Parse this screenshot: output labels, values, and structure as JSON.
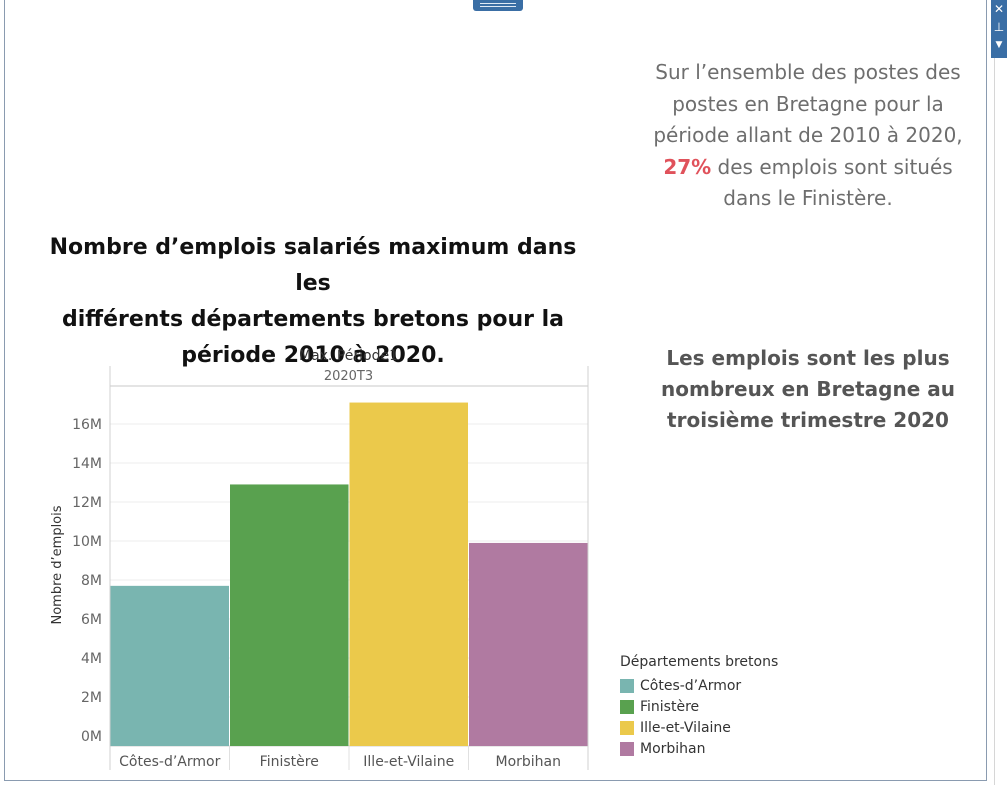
{
  "annotation": {
    "line1": "Sur l’ensemble des postes des",
    "line2": "postes en Bretagne pour la",
    "line3": "période allant de 2010 à 2020,",
    "percent": "27%",
    "line4_rest": " des emplois sont situés",
    "line5": "dans le Finistère."
  },
  "highlight": {
    "line1": "Les emplois sont les plus",
    "line2": "nombreux en Bretagne au",
    "line3": "troisième trimestre 2020"
  },
  "chart_title": {
    "line1": "Nombre d’emplois salariés maximum dans les",
    "line2": "différents départements bretons pour la",
    "line3": "période 2010 à 2020."
  },
  "chart_data": {
    "type": "bar",
    "header_label": "Max. Période1",
    "header_value": "2020T3",
    "categories": [
      "Côtes-d’Armor",
      "Finistère",
      "Ille-et-Vilaine",
      "Morbihan"
    ],
    "values": [
      7.7,
      12.9,
      17.1,
      9.9
    ],
    "value_unit": "M",
    "colors": [
      "#79b5b0",
      "#59a14f",
      "#ebc94b",
      "#b07aa1"
    ],
    "ylabel": "Nombre d’emplois",
    "y_ticks": [
      0,
      2,
      4,
      6,
      8,
      10,
      12,
      14,
      16
    ],
    "y_tick_labels": [
      "0M",
      "2M",
      "4M",
      "6M",
      "8M",
      "10M",
      "12M",
      "14M",
      "16M"
    ],
    "ylim": [
      0,
      17.6
    ],
    "grid": true,
    "legend": {
      "title": "Départements bretons",
      "placement": "right"
    }
  }
}
